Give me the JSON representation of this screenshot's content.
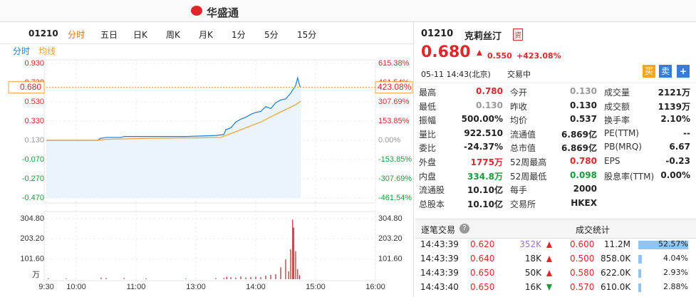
{
  "top_bar": {
    "logo": "华盛通"
  },
  "toolbar": {
    "code": "01210",
    "tabs": [
      "分时",
      "五日",
      "日K",
      "周K",
      "月K",
      "1分",
      "5分",
      "15分"
    ],
    "active": 0
  },
  "colors": {
    "up": "#e0262b",
    "down": "#1a9c3a",
    "muted": "#999999",
    "normal": "#222222",
    "purple": "#a070d0"
  },
  "chart_data": {
    "type": "line",
    "series": [
      {
        "name": "分时",
        "color": "#1f7ed6",
        "x": [
          0,
          52,
          54,
          60,
          75,
          78,
          100,
          140,
          170,
          178,
          180,
          185,
          190,
          195,
          200,
          205,
          210,
          215,
          220,
          225,
          230,
          235,
          240,
          245,
          250,
          252,
          254,
          255
        ],
        "values": [
          0.13,
          0.13,
          0.15,
          0.16,
          0.16,
          0.17,
          0.17,
          0.17,
          0.18,
          0.19,
          0.24,
          0.26,
          0.32,
          0.35,
          0.37,
          0.4,
          0.42,
          0.43,
          0.48,
          0.46,
          0.52,
          0.55,
          0.56,
          0.62,
          0.7,
          0.78,
          0.7,
          0.68
        ]
      },
      {
        "name": "均线",
        "color": "#f0a030",
        "x": [
          0,
          50,
          60,
          100,
          150,
          175,
          185,
          200,
          215,
          230,
          240,
          250,
          255
        ],
        "values": [
          0.13,
          0.13,
          0.14,
          0.15,
          0.155,
          0.16,
          0.2,
          0.26,
          0.32,
          0.4,
          0.45,
          0.5,
          0.537
        ]
      }
    ],
    "prev_close": 0.13,
    "xlim": [
      0,
      330
    ],
    "xticks": [
      {
        "value": 0,
        "label": "9:30"
      },
      {
        "value": 30,
        "label": "10:00"
      },
      {
        "value": 90,
        "label": "11:00"
      },
      {
        "value": 150,
        "label": "13:00"
      },
      {
        "value": 210,
        "label": "14:00"
      },
      {
        "value": 270,
        "label": "15:00"
      },
      {
        "value": 330,
        "label": "16:00"
      }
    ],
    "ylim": [
      -0.47,
      0.93
    ],
    "yticks": [
      {
        "value": 0.93,
        "label": "0.930"
      },
      {
        "value": 0.73,
        "label": "0.730"
      },
      {
        "value": 0.53,
        "label": "0.530"
      },
      {
        "value": 0.33,
        "label": "0.330"
      },
      {
        "value": 0.13,
        "label": "0.130"
      },
      {
        "value": -0.07,
        "label": "-0.070"
      },
      {
        "value": -0.27,
        "label": "-0.270"
      },
      {
        "value": -0.47,
        "label": "-0.470"
      }
    ],
    "y2lim": [
      -461.54,
      615.38
    ],
    "y2ticks": [
      {
        "value": 615.38,
        "label": "615.38%"
      },
      {
        "value": 461.54,
        "label": "461.54%"
      },
      {
        "value": 307.69,
        "label": "307.69%"
      },
      {
        "value": 153.85,
        "label": "153.85%"
      },
      {
        "value": 0,
        "label": "0.00%"
      },
      {
        "value": -153.85,
        "label": "-153.85%"
      },
      {
        "value": -307.69,
        "label": "-307.69%"
      },
      {
        "value": -461.54,
        "label": "-461.54%"
      }
    ],
    "current": {
      "value": 0.68,
      "label": "0.680"
    },
    "current_pct": {
      "value": 423.08,
      "label": "423.08%"
    },
    "volume": {
      "color": "#b8232a",
      "unit": "万",
      "ylim": [
        0,
        304.8
      ],
      "yticks": [
        {
          "value": 304.8,
          "label": "304.80"
        },
        {
          "value": 203.2,
          "label": "203.20"
        },
        {
          "value": 101.6,
          "label": "101.60"
        }
      ],
      "x": [
        2,
        20,
        55,
        60,
        78,
        100,
        140,
        170,
        178,
        181,
        185,
        190,
        195,
        200,
        205,
        210,
        215,
        220,
        225,
        230,
        235,
        240,
        243,
        245,
        247,
        248,
        250,
        252,
        254
      ],
      "values": [
        4,
        3,
        8,
        6,
        5,
        4,
        3,
        5,
        6,
        12,
        10,
        8,
        14,
        9,
        11,
        13,
        10,
        18,
        22,
        25,
        60,
        100,
        40,
        150,
        300,
        260,
        140,
        50,
        20
      ]
    },
    "grid": true
  },
  "quote": {
    "code": "01210",
    "name": "克莉丝汀",
    "badge": "资",
    "price": "0.680",
    "change": "0.550",
    "change_pct": "+423.08%",
    "time": "05-11 14:43(北京)",
    "status": "交易中",
    "buy": "买",
    "sell": "卖",
    "add": "+"
  },
  "stats": [
    [
      {
        "label": "最高",
        "value": "0.780",
        "tone": "up"
      },
      {
        "label": "今开",
        "value": "0.130",
        "tone": "muted"
      },
      {
        "label": "成交量",
        "value": "2121万",
        "tone": "normal"
      }
    ],
    [
      {
        "label": "最低",
        "value": "0.130",
        "tone": "muted"
      },
      {
        "label": "昨收",
        "value": "0.130",
        "tone": "normal"
      },
      {
        "label": "成交额",
        "value": "1139万",
        "tone": "normal"
      }
    ],
    [
      {
        "label": "振幅",
        "value": "500.00%",
        "tone": "normal"
      },
      {
        "label": "均价",
        "value": "0.537",
        "tone": "normal"
      },
      {
        "label": "换手率",
        "value": "2.10%",
        "tone": "normal"
      }
    ],
    [
      {
        "label": "量比",
        "value": "922.510",
        "tone": "normal"
      },
      {
        "label": "流通值",
        "value": "6.869亿",
        "tone": "normal"
      },
      {
        "label": "PE(TTM)",
        "value": "--",
        "tone": "normal"
      }
    ],
    [
      {
        "label": "委比",
        "value": "-24.37%",
        "tone": "normal"
      },
      {
        "label": "总市值",
        "value": "6.869亿",
        "tone": "normal"
      },
      {
        "label": "PB(MRQ)",
        "value": "6.67",
        "tone": "normal"
      }
    ],
    [
      {
        "label": "外盘",
        "value": "1775万",
        "tone": "up"
      },
      {
        "label": "52周最高",
        "value": "0.780",
        "tone": "up"
      },
      {
        "label": "EPS",
        "value": "-0.23",
        "tone": "normal"
      }
    ],
    [
      {
        "label": "内盘",
        "value": "334.8万",
        "tone": "down"
      },
      {
        "label": "52周最低",
        "value": "0.098",
        "tone": "down"
      },
      {
        "label": "股息率(TTM)",
        "value": "0.00%",
        "tone": "normal"
      }
    ],
    [
      {
        "label": "流通股",
        "value": "10.10亿",
        "tone": "normal"
      },
      {
        "label": "每手",
        "value": "2000",
        "tone": "normal"
      }
    ],
    [
      {
        "label": "总股本",
        "value": "10.10亿",
        "tone": "normal"
      },
      {
        "label": "交易所",
        "value": "HKEX",
        "tone": "normal"
      }
    ]
  ],
  "trades": {
    "title": "逐笔交易",
    "help": "?",
    "rows": [
      {
        "time": "14:43:39",
        "price": "0.620",
        "volume": "352K",
        "vtone": "purple",
        "dir": "up"
      },
      {
        "time": "14:43:39",
        "price": "0.640",
        "volume": "18K",
        "vtone": "normal",
        "dir": "up"
      },
      {
        "time": "14:43:39",
        "price": "0.650",
        "volume": "50K",
        "vtone": "normal",
        "dir": "up"
      },
      {
        "time": "14:43:40",
        "price": "0.650",
        "volume": "16K",
        "vtone": "normal",
        "dir": "down"
      }
    ]
  },
  "dist": {
    "title": "成交统计",
    "rows": [
      {
        "price": "0.600",
        "volume": "11.2M",
        "pct": {
          "value": 52.57,
          "label": "52.57%"
        }
      },
      {
        "price": "0.500",
        "volume": "858.0K",
        "pct": {
          "value": 4.04,
          "label": "4.04%"
        }
      },
      {
        "price": "0.580",
        "volume": "622.0K",
        "pct": {
          "value": 2.93,
          "label": "2.93%"
        }
      },
      {
        "price": "0.570",
        "volume": "610.0K",
        "pct": {
          "value": 2.88,
          "label": "2.88%"
        }
      }
    ]
  }
}
